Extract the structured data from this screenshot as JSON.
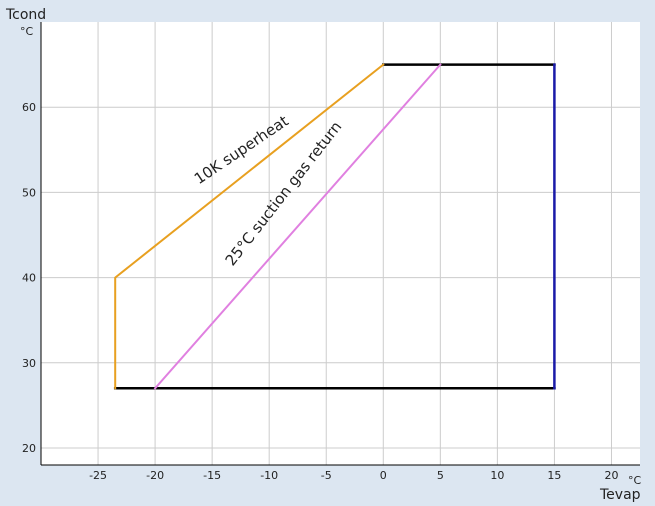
{
  "chart_data": {
    "type": "line",
    "title": "",
    "xlabel": "Tevap",
    "ylabel": "Tcond",
    "x_unit": "°C",
    "y_unit": "°C",
    "xlim": [
      -30,
      22.5
    ],
    "ylim": [
      18,
      70
    ],
    "xticks": [
      -25,
      -20,
      -15,
      -10,
      -5,
      0,
      5,
      10,
      15,
      20
    ],
    "yticks": [
      20,
      30,
      40,
      50,
      60
    ],
    "grid": true,
    "legend": "none",
    "series": [
      {
        "key": "envelope_top",
        "color": "#000000",
        "x": [
          0,
          15
        ],
        "y": [
          65,
          65
        ]
      },
      {
        "key": "envelope_bottom",
        "color": "#000000",
        "x": [
          -23.5,
          15
        ],
        "y": [
          27,
          27
        ]
      },
      {
        "key": "envelope_right",
        "color": "#1a1aa8",
        "x": [
          15,
          15
        ],
        "y": [
          27,
          65
        ]
      },
      {
        "name": "10K superheat",
        "color": "#e8a020",
        "x": [
          -23.5,
          -23.5,
          0
        ],
        "y": [
          27,
          40,
          65
        ]
      },
      {
        "name": "25°C suction gas return",
        "color": "#e080e0",
        "x": [
          -20,
          5
        ],
        "y": [
          27,
          65
        ]
      }
    ],
    "annotations": [
      {
        "text": "10K superheat",
        "x": -12.2,
        "y": 54.5,
        "angle": -34
      },
      {
        "text": "25°C suction gas return",
        "x": -8.4,
        "y": 49.5,
        "angle": -52
      }
    ]
  }
}
